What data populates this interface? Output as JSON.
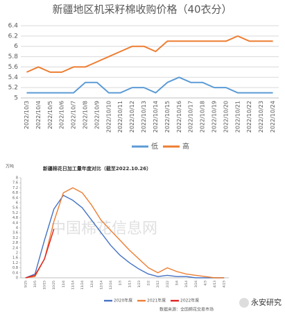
{
  "chart_data": [
    {
      "type": "line",
      "title": "新疆地区机采籽棉收购价格（40衣分）",
      "categories": [
        "2022/10/3",
        "2022/10/4",
        "2022/10/5",
        "2022/10/6",
        "2022/10/7",
        "2022/10/8",
        "2022/10/9",
        "2022/10/10",
        "2022/10/11",
        "2022/10/12",
        "2022/10/13",
        "2022/10/14",
        "2022/10/15",
        "2022/10/16",
        "2022/10/17",
        "2022/10/18",
        "2022/10/19",
        "2022/10/20",
        "2022/10/21",
        "2022/10/22",
        "2022/10/23",
        "2022/10/24"
      ],
      "series": [
        {
          "name": "低",
          "color": "#5b9bd5",
          "values": [
            5.1,
            5.1,
            5.1,
            5.1,
            5.1,
            5.3,
            5.3,
            5.1,
            5.1,
            5.2,
            5.2,
            5.1,
            5.3,
            5.4,
            5.3,
            5.3,
            5.2,
            5.2,
            5.1,
            5.1,
            5.1,
            5.1
          ]
        },
        {
          "name": "高",
          "color": "#ed7d31",
          "values": [
            5.5,
            5.6,
            5.5,
            5.5,
            5.6,
            5.6,
            5.7,
            5.8,
            5.9,
            6.0,
            6.0,
            5.9,
            6.1,
            6.1,
            6.1,
            6.1,
            6.1,
            6.1,
            6.2,
            6.1,
            6.1,
            6.1
          ]
        }
      ],
      "ylim": [
        5,
        6.4
      ],
      "yticks": [
        5,
        5.2,
        5.4,
        5.6,
        5.8,
        6,
        6.2,
        6.4
      ],
      "grid": true,
      "legend": "bottom"
    },
    {
      "type": "line",
      "title": "新疆棉花日加工量年度对比（截至2022.10.26）",
      "y_label": "万吨",
      "categories": [
        "9/25",
        "10/5",
        "10/15",
        "10/25",
        "11/4",
        "11/14",
        "11/24",
        "12/4",
        "12/14",
        "12/24",
        "1/3",
        "1/13",
        "1/23",
        "2/2",
        "2/12",
        "2/22",
        "3/4",
        "3/14",
        "3/24",
        "4/3",
        "4/13",
        "4/23"
      ],
      "series": [
        {
          "name": "2020年度",
          "color": "#4472c4",
          "values": [
            0,
            0.3,
            3,
            5.5,
            6.6,
            6.2,
            5.6,
            4.6,
            3.6,
            2.6,
            1.8,
            1.2,
            0.7,
            0.3,
            0.1,
            0.2,
            0.1,
            0.1,
            0,
            0,
            0,
            0
          ]
        },
        {
          "name": "2021年度",
          "color": "#ed7d31",
          "values": [
            0,
            0.1,
            1.5,
            4.5,
            6.8,
            7.2,
            6.8,
            5.8,
            4.6,
            3.8,
            3.0,
            2.2,
            1.5,
            0.8,
            0.4,
            0.8,
            0.5,
            0.3,
            0.2,
            0.1,
            0,
            0
          ]
        },
        {
          "name": "2022年度",
          "color": "#e02020",
          "values": [
            0,
            0.2,
            1.5,
            3.9,
            null,
            null,
            null,
            null,
            null,
            null,
            null,
            null,
            null,
            null,
            null,
            null,
            null,
            null,
            null,
            null,
            null,
            null
          ]
        }
      ],
      "ylim": [
        0,
        8
      ],
      "yticks": [
        0,
        0.4,
        0.8,
        1.2,
        1.6,
        2,
        2.4,
        2.8,
        3.2,
        3.6,
        4,
        4.4,
        4.8,
        5.2,
        5.6,
        6,
        6.4,
        6.8,
        7.2,
        7.6,
        8
      ],
      "grid": false,
      "legend": "bottom",
      "source": "数据来源：全国棉花交易市场",
      "watermark": "中国棉花信息网",
      "brand": "永安研究"
    }
  ]
}
